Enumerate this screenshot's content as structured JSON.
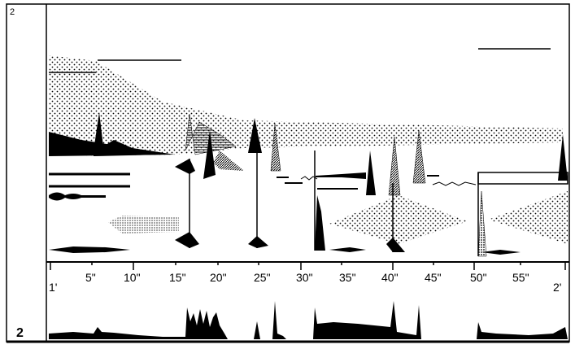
{
  "page_number": "2",
  "system_number": "2",
  "timeline": {
    "labels": [
      "1'",
      "5\"",
      "10\"",
      "15\"",
      "20\"",
      "25\"",
      "30\"",
      "35\"",
      "40\"",
      "45\"",
      "50\"",
      "55\"",
      "2'"
    ]
  }
}
